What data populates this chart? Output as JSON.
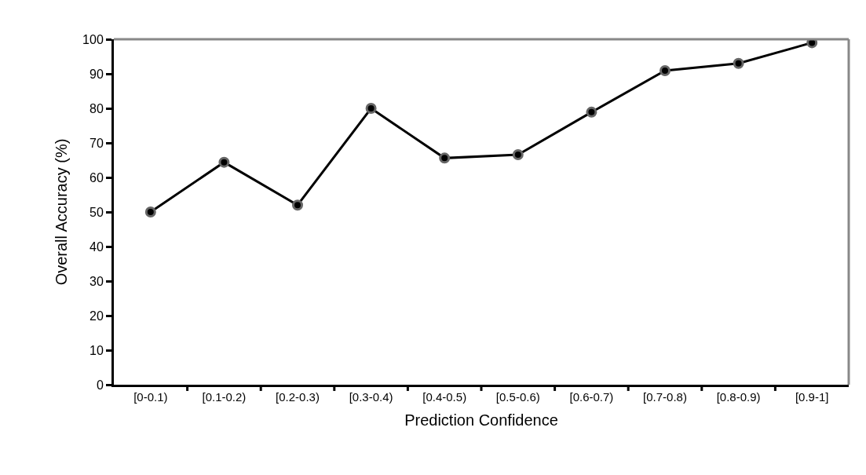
{
  "chart_data": {
    "type": "line",
    "xlabel": "Prediction Confidence",
    "ylabel": "Overall Accuracy (%)",
    "categories": [
      "[0-0.1)",
      "[0.1-0.2)",
      "[0.2-0.3)",
      "[0.3-0.4)",
      "[0.4-0.5)",
      "[0.5-0.6)",
      "[0.6-0.7)",
      "[0.7-0.8)",
      "[0.8-0.9)",
      "[0.9-1]"
    ],
    "series": [
      {
        "color": "#000000",
        "values": [
          50,
          64.4,
          52,
          80,
          65.6,
          66.6,
          78.9,
          90.9,
          93,
          99
        ]
      }
    ],
    "ylim": [
      0,
      100
    ],
    "yticks": [
      0,
      10,
      20,
      30,
      40,
      50,
      60,
      70,
      80,
      90,
      100
    ],
    "marker": "circle",
    "line_style": "solid"
  }
}
